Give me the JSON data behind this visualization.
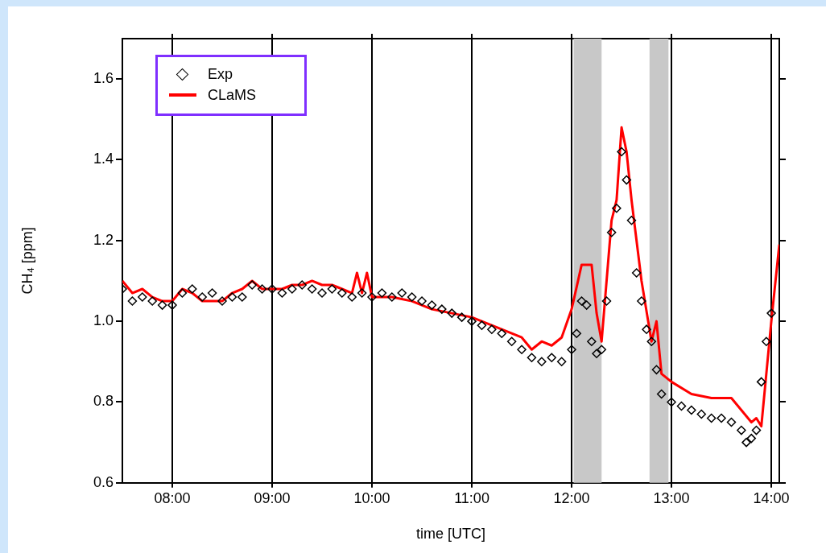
{
  "chart_data": {
    "type": "line",
    "xlabel": "time [UTC]",
    "ylabel": "CH₄ [ppm]",
    "xlim": [
      7.5,
      14.08
    ],
    "ylim": [
      0.6,
      1.7
    ],
    "xticks": [
      {
        "value": 8,
        "label": "08:00"
      },
      {
        "value": 9,
        "label": "09:00"
      },
      {
        "value": 10,
        "label": "10:00"
      },
      {
        "value": 11,
        "label": "11:00"
      },
      {
        "value": 12,
        "label": "12:00"
      },
      {
        "value": 13,
        "label": "13:00"
      },
      {
        "value": 14,
        "label": "14:00"
      }
    ],
    "yticks": [
      {
        "value": 0.6,
        "label": "0.6"
      },
      {
        "value": 0.8,
        "label": "0.8"
      },
      {
        "value": 1.0,
        "label": "1.0"
      },
      {
        "value": 1.2,
        "label": "1.2"
      },
      {
        "value": 1.4,
        "label": "1.4"
      },
      {
        "value": 1.6,
        "label": "1.6"
      }
    ],
    "grid": "x",
    "legend": "top left",
    "bands": [
      {
        "axis": "x",
        "from": 12.02,
        "to": 12.3,
        "color": "#c8c8c8"
      },
      {
        "axis": "x",
        "from": 12.78,
        "to": 12.97,
        "color": "#c8c8c8"
      }
    ],
    "series": [
      {
        "name": "Exp",
        "type": "scatter",
        "marker": "diamond",
        "color": "#000000",
        "x": [
          7.5,
          7.6,
          7.7,
          7.8,
          7.9,
          8.0,
          8.1,
          8.2,
          8.3,
          8.4,
          8.5,
          8.6,
          8.7,
          8.8,
          8.9,
          9.0,
          9.1,
          9.2,
          9.3,
          9.4,
          9.5,
          9.6,
          9.7,
          9.8,
          9.9,
          10.0,
          10.1,
          10.2,
          10.3,
          10.4,
          10.5,
          10.6,
          10.7,
          10.8,
          10.9,
          11.0,
          11.1,
          11.2,
          11.3,
          11.4,
          11.5,
          11.6,
          11.7,
          11.8,
          11.9,
          12.0,
          12.05,
          12.1,
          12.15,
          12.2,
          12.25,
          12.3,
          12.35,
          12.4,
          12.45,
          12.5,
          12.55,
          12.6,
          12.65,
          12.7,
          12.75,
          12.8,
          12.85,
          12.9,
          13.0,
          13.1,
          13.2,
          13.3,
          13.4,
          13.5,
          13.6,
          13.7,
          13.75,
          13.8,
          13.85,
          13.9,
          13.95,
          14.0
        ],
        "values": [
          1.08,
          1.05,
          1.06,
          1.05,
          1.04,
          1.04,
          1.07,
          1.08,
          1.06,
          1.07,
          1.05,
          1.06,
          1.06,
          1.09,
          1.08,
          1.08,
          1.07,
          1.08,
          1.09,
          1.08,
          1.07,
          1.08,
          1.07,
          1.06,
          1.07,
          1.06,
          1.07,
          1.06,
          1.07,
          1.06,
          1.05,
          1.04,
          1.03,
          1.02,
          1.01,
          1.0,
          0.99,
          0.98,
          0.97,
          0.95,
          0.93,
          0.91,
          0.9,
          0.91,
          0.9,
          0.93,
          0.97,
          1.05,
          1.04,
          0.95,
          0.92,
          0.93,
          1.05,
          1.22,
          1.28,
          1.42,
          1.35,
          1.25,
          1.12,
          1.05,
          0.98,
          0.95,
          0.88,
          0.82,
          0.8,
          0.79,
          0.78,
          0.77,
          0.76,
          0.76,
          0.75,
          0.73,
          0.7,
          0.71,
          0.73,
          0.85,
          0.95,
          1.02
        ]
      },
      {
        "name": "CLaMS",
        "marker": "none",
        "color": "#ff0000",
        "x": [
          7.5,
          7.6,
          7.7,
          7.8,
          7.9,
          8.0,
          8.1,
          8.2,
          8.3,
          8.4,
          8.5,
          8.6,
          8.7,
          8.8,
          8.9,
          9.0,
          9.1,
          9.2,
          9.3,
          9.4,
          9.5,
          9.6,
          9.7,
          9.8,
          9.85,
          9.9,
          9.95,
          10.0,
          10.2,
          10.4,
          10.6,
          10.8,
          11.0,
          11.2,
          11.4,
          11.5,
          11.6,
          11.7,
          11.8,
          11.9,
          12.0,
          12.1,
          12.2,
          12.25,
          12.3,
          12.4,
          12.45,
          12.5,
          12.55,
          12.6,
          12.7,
          12.8,
          12.85,
          12.9,
          13.0,
          13.2,
          13.4,
          13.6,
          13.7,
          13.8,
          13.85,
          13.9,
          14.0,
          14.08
        ],
        "values": [
          1.1,
          1.07,
          1.08,
          1.06,
          1.05,
          1.05,
          1.08,
          1.07,
          1.05,
          1.05,
          1.05,
          1.07,
          1.08,
          1.1,
          1.08,
          1.08,
          1.08,
          1.09,
          1.09,
          1.1,
          1.09,
          1.09,
          1.08,
          1.07,
          1.12,
          1.07,
          1.12,
          1.06,
          1.06,
          1.05,
          1.03,
          1.02,
          1.01,
          0.99,
          0.97,
          0.96,
          0.93,
          0.95,
          0.94,
          0.96,
          1.03,
          1.14,
          1.14,
          1.02,
          0.95,
          1.25,
          1.3,
          1.48,
          1.42,
          1.3,
          1.1,
          0.95,
          1.0,
          0.87,
          0.85,
          0.82,
          0.81,
          0.81,
          0.78,
          0.75,
          0.76,
          0.74,
          1.0,
          1.19
        ]
      }
    ]
  }
}
